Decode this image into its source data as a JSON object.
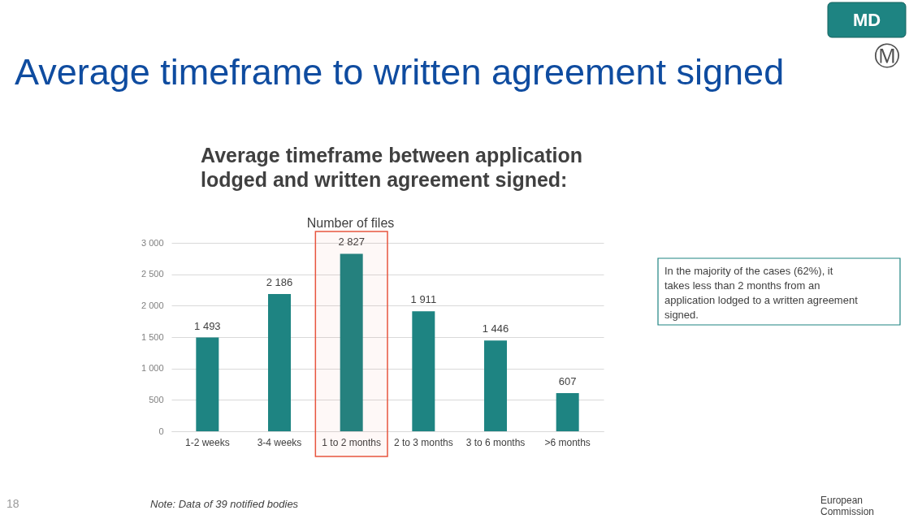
{
  "chart_data": {
    "type": "bar",
    "title": "Average timeframe to written agreement signed",
    "subtitle": "Average timeframe between application lodged and written agreement signed:",
    "ylabel": "Number of files",
    "categories": [
      "1-2 weeks",
      "3-4 weeks",
      "1 to 2 months",
      "2 to 3 months",
      "3 to 6 months",
      ">6 months"
    ],
    "values": [
      1493,
      2186,
      2827,
      1911,
      1446,
      607
    ],
    "value_labels": [
      "1 493",
      "2 186",
      "2 827",
      "1 911",
      "1 446",
      "607"
    ],
    "color": "#1e8482",
    "ylim": [
      0,
      3000
    ],
    "yticks": [
      0,
      500,
      {
        "value": 1000,
        "label": "1 000"
      },
      {
        "value": 1500,
        "label": "1 500"
      },
      {
        "value": 2000,
        "label": "2 000"
      },
      {
        "value": 2500,
        "label": "2 500"
      },
      {
        "value": 3000,
        "label": "3 000"
      }
    ],
    "grid": "y",
    "bands": [
      {
        "axis": "x",
        "from": "1 to 2 months",
        "to": "1 to 2 months",
        "color": "#e8553f"
      }
    ],
    "annotations": [
      "MD",
      "Ⓜ",
      "In the majority of the cases (62%), it takes less than 2 months from an application lodged to a written agreement signed.",
      "Note: Data of 39 notified bodies",
      "18",
      "European Commission"
    ]
  }
}
